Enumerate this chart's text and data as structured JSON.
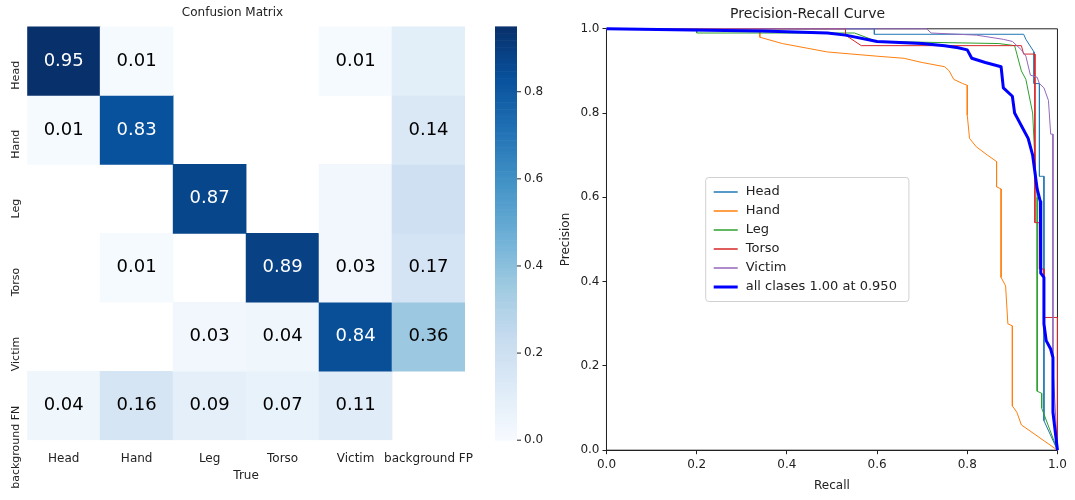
{
  "chart_data": [
    {
      "type": "heatmap",
      "title": "Confusion Matrix",
      "xlabel": "True",
      "categories": [
        "Head",
        "Hand",
        "Leg",
        "Torso",
        "Victim",
        "background FP"
      ],
      "y_categories": [
        "Head",
        "Hand",
        "Leg",
        "Torso",
        "Victim",
        "background FN"
      ],
      "cells": [
        [
          0.95,
          0.01,
          null,
          null,
          0.01,
          0.1
        ],
        [
          0.01,
          0.83,
          null,
          null,
          null,
          0.14
        ],
        [
          null,
          null,
          0.87,
          null,
          0.03,
          0.2
        ],
        [
          null,
          0.01,
          null,
          0.89,
          0.03,
          0.17
        ],
        [
          null,
          null,
          0.03,
          0.04,
          0.84,
          0.36
        ],
        [
          0.04,
          0.16,
          0.09,
          0.07,
          0.11,
          null
        ]
      ],
      "cell_labels": [
        [
          "0.95",
          "0.01",
          null,
          null,
          "0.01",
          null
        ],
        [
          "0.01",
          "0.83",
          null,
          null,
          null,
          "0.14"
        ],
        [
          null,
          null,
          "0.87",
          null,
          null,
          null
        ],
        [
          null,
          "0.01",
          null,
          "0.89",
          "0.03",
          "0.17"
        ],
        [
          null,
          null,
          "0.03",
          "0.04",
          "0.84",
          "0.36"
        ],
        [
          "0.04",
          "0.16",
          "0.09",
          "0.07",
          "0.11",
          null
        ]
      ],
      "clim": [
        0,
        0.95
      ],
      "cticks": [
        {
          "value": 0,
          "label": "0.0"
        },
        {
          "value": 0.2,
          "label": "0.2"
        },
        {
          "value": 0.4,
          "label": "0.4"
        },
        {
          "value": 0.6,
          "label": "0.6"
        },
        {
          "value": 0.8,
          "label": "0.8"
        }
      ]
    },
    {
      "type": "line",
      "title": "Precision-Recall Curve",
      "xlabel": "Recall",
      "ylabel": "Precision",
      "xlim": [
        0,
        1
      ],
      "ylim": [
        0,
        1
      ],
      "xticks": [
        {
          "value": 0,
          "label": "0.0"
        },
        {
          "value": 0.2,
          "label": "0.2"
        },
        {
          "value": 0.4,
          "label": "0.4"
        },
        {
          "value": 0.6,
          "label": "0.6"
        },
        {
          "value": 0.8,
          "label": "0.8"
        },
        {
          "value": 1,
          "label": "1.0"
        }
      ],
      "yticks": [
        {
          "value": 0,
          "label": "0.0"
        },
        {
          "value": 0.2,
          "label": "0.2"
        },
        {
          "value": 0.4,
          "label": "0.4"
        },
        {
          "value": 0.6,
          "label": "0.6"
        },
        {
          "value": 0.8,
          "label": "0.8"
        },
        {
          "value": 1,
          "label": "1.0"
        }
      ],
      "legend": "center left",
      "series": [
        {
          "name": "Head",
          "color": "#1f77b4",
          "x": [
            0,
            0.594,
            0.594,
            0.925,
            0.93,
            0.948,
            0.948,
            0.96,
            0.96,
            0.97,
            0.97,
            1
          ],
          "values": [
            1,
            1,
            0.987,
            0.987,
            0.975,
            0.945,
            0.87,
            0.87,
            0.65,
            0.65,
            0.07,
            0
          ]
        },
        {
          "name": "Hand",
          "color": "#ff7f0e",
          "x": [
            0,
            0.34,
            0.34,
            0.39,
            0.49,
            0.6,
            0.66,
            0.7,
            0.75,
            0.76,
            0.77,
            0.79,
            0.8,
            0.8,
            0.805,
            0.82,
            0.845,
            0.865,
            0.865,
            0.875,
            0.875,
            0.885,
            0.89,
            0.9,
            0.9,
            0.91,
            0.92,
            1
          ],
          "values": [
            1,
            1,
            0.98,
            0.965,
            0.945,
            0.935,
            0.93,
            0.92,
            0.91,
            0.9,
            0.88,
            0.87,
            0.866,
            0.795,
            0.74,
            0.72,
            0.7,
            0.685,
            0.625,
            0.62,
            0.41,
            0.39,
            0.3,
            0.295,
            0.105,
            0.09,
            0.06,
            0
          ]
        },
        {
          "name": "Leg",
          "color": "#2ca02c",
          "x": [
            0,
            0.2,
            0.2,
            0.55,
            0.6,
            0.87,
            0.905,
            0.91,
            0.92,
            0.93,
            0.945,
            0.95,
            0.955,
            0.955,
            0.965,
            0.965,
            1
          ],
          "values": [
            1,
            1,
            0.99,
            0.99,
            0.97,
            0.965,
            0.96,
            0.94,
            0.9,
            0.88,
            0.8,
            0.69,
            0.6,
            0.14,
            0.135,
            0.1,
            0
          ]
        },
        {
          "name": "Torso",
          "color": "#d62728",
          "x": [
            0,
            0.53,
            0.53,
            0.565,
            0.92,
            0.925,
            0.95,
            0.95,
            0.96,
            0.96,
            0.97,
            0.97,
            1,
            1
          ],
          "values": [
            1,
            1,
            0.985,
            0.96,
            0.96,
            0.94,
            0.94,
            0.54,
            0.54,
            0.43,
            0.43,
            0.315,
            0.315,
            0
          ]
        },
        {
          "name": "Victim",
          "color": "#9467bd",
          "x": [
            0,
            0.71,
            0.72,
            0.82,
            0.88,
            0.9,
            0.91,
            0.92,
            0.93,
            0.94,
            0.955,
            0.96,
            0.97,
            0.98,
            0.985,
            0.99,
            0.99,
            1
          ],
          "values": [
            1,
            1,
            0.99,
            0.985,
            0.975,
            0.97,
            0.96,
            0.95,
            0.935,
            0.89,
            0.885,
            0.87,
            0.86,
            0.83,
            0.75,
            0.75,
            0.2,
            0
          ]
        },
        {
          "name": "all clases 1.00 at 0.950",
          "color": "#0000ff",
          "x": [
            0,
            0.34,
            0.49,
            0.53,
            0.6,
            0.7,
            0.75,
            0.78,
            0.8,
            0.81,
            0.84,
            0.875,
            0.88,
            0.9,
            0.905,
            0.92,
            0.935,
            0.945,
            0.955,
            0.962,
            0.963,
            0.97,
            0.97,
            0.975,
            0.985,
            0.99,
            0.99,
            1
          ],
          "values": [
            1,
            0.995,
            0.99,
            0.985,
            0.97,
            0.965,
            0.96,
            0.955,
            0.95,
            0.93,
            0.92,
            0.91,
            0.86,
            0.84,
            0.8,
            0.77,
            0.74,
            0.7,
            0.62,
            0.59,
            0.42,
            0.41,
            0.3,
            0.26,
            0.24,
            0.22,
            0.09,
            0
          ]
        }
      ]
    }
  ]
}
